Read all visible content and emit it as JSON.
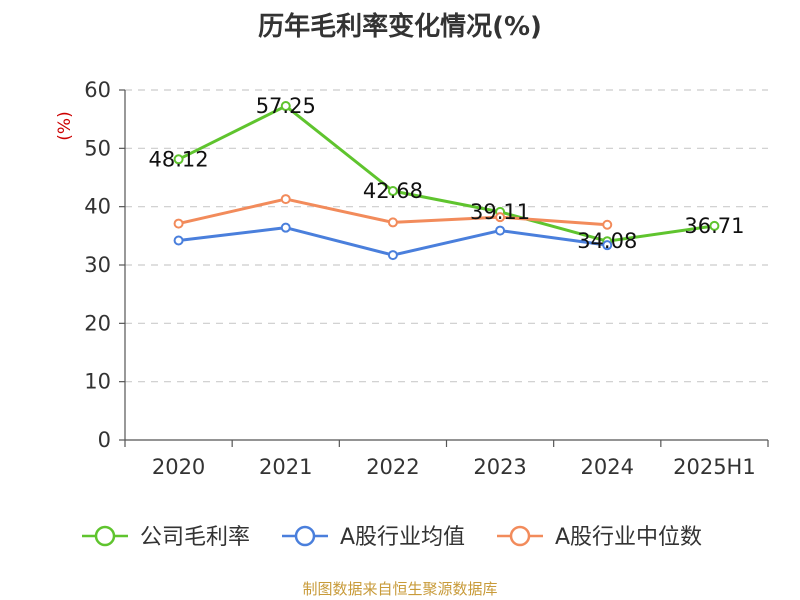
{
  "chart_data": {
    "type": "line",
    "title": "历年毛利率变化情况(%)",
    "ylabel": "(%)",
    "xlabel": "",
    "categories": [
      "2020",
      "2021",
      "2022",
      "2023",
      "2024",
      "2025H1"
    ],
    "ylim": [
      0,
      60
    ],
    "yticks": [
      0,
      10,
      20,
      30,
      40,
      50,
      60
    ],
    "grid": true,
    "legend_position": "bottom",
    "series": [
      {
        "name": "公司毛利率",
        "color": "#5fc42e",
        "values": [
          48.12,
          57.25,
          42.68,
          39.11,
          34.08,
          36.71
        ],
        "labels": [
          "48.12",
          "57.25",
          "42.68",
          "39.11",
          "34.08",
          "36.71"
        ]
      },
      {
        "name": "A股行业均值",
        "color": "#4a7fdc",
        "values": [
          34.2,
          36.4,
          31.7,
          35.9,
          33.4,
          null
        ]
      },
      {
        "name": "A股行业中位数",
        "color": "#f28b5b",
        "values": [
          37.1,
          41.3,
          37.3,
          38.2,
          36.9,
          null
        ]
      }
    ]
  },
  "source_text": "制图数据来自恒生聚源数据库"
}
